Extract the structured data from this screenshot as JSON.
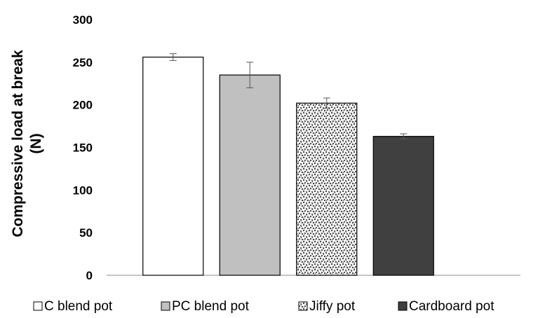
{
  "chart_data": {
    "type": "bar",
    "ylabel_lines": [
      "Compressive load at break",
      "(N)"
    ],
    "ylim": [
      0,
      300
    ],
    "yticks": [
      0,
      50,
      100,
      150,
      200,
      250,
      300
    ],
    "grid": false,
    "legend_position": "bottom",
    "series": [
      {
        "name": "C blend pot",
        "value": 256,
        "error": 4,
        "fill": "#ffffff",
        "pattern": "none"
      },
      {
        "name": "PC blend pot",
        "value": 235,
        "error": 15,
        "fill": "#c0c0c0",
        "pattern": "none"
      },
      {
        "name": "Jiffy pot",
        "value": 202,
        "error": 6,
        "fill": "#e6e6e6",
        "pattern": "speckle"
      },
      {
        "name": "Cardboard pot",
        "value": 163,
        "error": 3,
        "fill": "#404040",
        "pattern": "none"
      }
    ]
  }
}
